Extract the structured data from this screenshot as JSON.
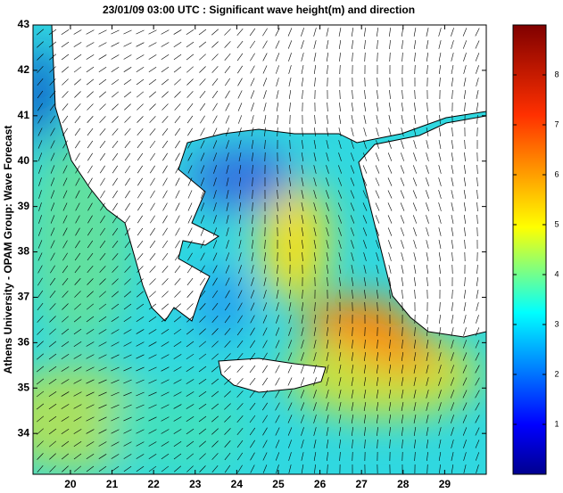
{
  "title": "23/01/09 03:00 UTC : Significant wave height(m) and direction",
  "y_label": "Athens University - OPAM Group: Wave Forecast",
  "map": {
    "xlim": [
      19.1,
      30
    ],
    "xticks": [
      20,
      21,
      22,
      23,
      24,
      25,
      26,
      27,
      28,
      29
    ],
    "ylim": [
      33.1,
      43
    ],
    "yticks": [
      34,
      35,
      36,
      37,
      38,
      39,
      40,
      41,
      42,
      43
    ]
  },
  "colorbar": {
    "lim": [
      0,
      9
    ],
    "ticks": [
      1,
      2,
      3,
      4,
      5,
      6,
      7,
      8
    ]
  }
}
